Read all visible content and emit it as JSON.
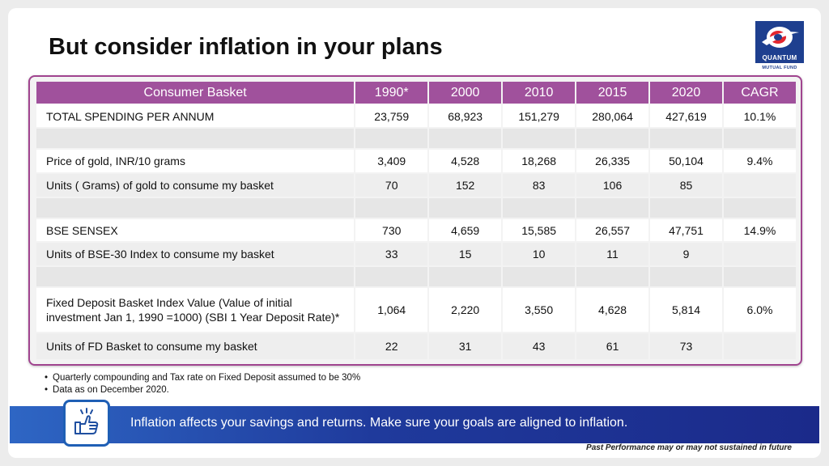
{
  "title": "But consider inflation in your plans",
  "logo": {
    "name": "QUANTUM",
    "sub": "MUTUAL FUND",
    "brand_color": "#1e3f8f"
  },
  "table": {
    "headers": [
      "Consumer Basket",
      "1990*",
      "2000",
      "2010",
      "2015",
      "2020",
      "CAGR"
    ],
    "header_color": "#a0519c",
    "rows": [
      {
        "kind": "data",
        "cells": [
          "TOTAL SPENDING PER ANNUM",
          "23,759",
          "68,923",
          "151,279",
          "280,064",
          "427,619",
          "10.1%"
        ]
      },
      {
        "kind": "gap",
        "cells": [
          "",
          "",
          "",
          "",
          "",
          "",
          ""
        ]
      },
      {
        "kind": "data",
        "cells": [
          "Price of gold, INR/10 grams",
          "3,409",
          "4,528",
          "18,268",
          "26,335",
          "50,104",
          "9.4%"
        ]
      },
      {
        "kind": "alt",
        "cells": [
          "Units ( Grams) of gold to consume my basket",
          "70",
          "152",
          "83",
          "106",
          "85",
          ""
        ]
      },
      {
        "kind": "gap",
        "cells": [
          "",
          "",
          "",
          "",
          "",
          "",
          ""
        ]
      },
      {
        "kind": "data",
        "cells": [
          "BSE SENSEX",
          "730",
          "4,659",
          "15,585",
          "26,557",
          "47,751",
          "14.9%"
        ]
      },
      {
        "kind": "alt",
        "cells": [
          "Units  of BSE-30 Index to consume my basket",
          "33",
          "15",
          "10",
          "11",
          "9",
          ""
        ]
      },
      {
        "kind": "gap",
        "cells": [
          "",
          "",
          "",
          "",
          "",
          "",
          ""
        ]
      },
      {
        "kind": "data",
        "cells": [
          "Fixed Deposit Basket Index Value (Value of initial investment Jan 1, 1990 =1000) (SBI 1 Year Deposit Rate)*",
          "1,064",
          "2,220",
          "3,550",
          "4,628",
          "5,814",
          "6.0%"
        ]
      },
      {
        "kind": "alt",
        "cells": [
          "Units  of FD Basket to consume my basket",
          "22",
          "31",
          "43",
          "61",
          "73",
          ""
        ]
      }
    ]
  },
  "footnotes": [
    "Quarterly compounding and Tax rate on Fixed Deposit assumed to be 30%",
    "Data as on December 2020."
  ],
  "banner": {
    "text": "Inflation affects your savings and returns. Make sure your goals are aligned to inflation.",
    "icon": "thumbs-up-icon"
  },
  "disclaimer": "Past Performance may or may not sustained in future"
}
